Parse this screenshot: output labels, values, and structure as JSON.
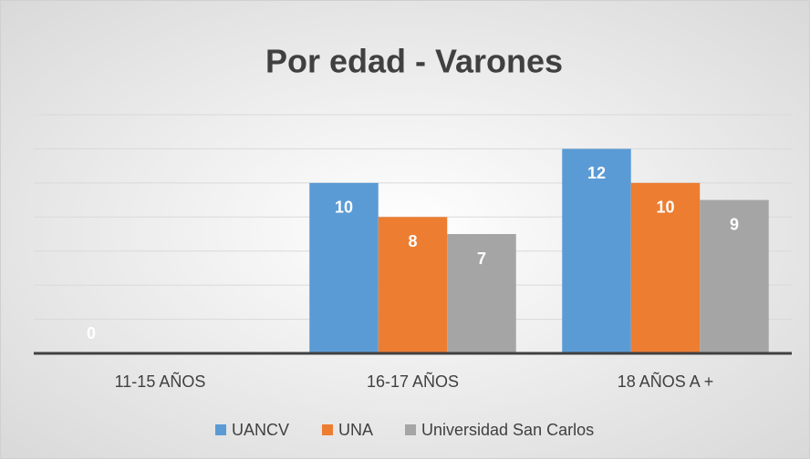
{
  "chart_data": {
    "type": "bar",
    "title": "Por edad - Varones",
    "categories": [
      "11-15 AÑOS",
      "16-17 AÑOS",
      "18 AÑOS A +"
    ],
    "series": [
      {
        "name": "UANCV",
        "color": "#5b9bd5",
        "values": [
          0,
          10,
          12
        ]
      },
      {
        "name": "UNA",
        "color": "#ed7d31",
        "values": [
          null,
          8,
          10
        ]
      },
      {
        "name": "Universidad San Carlos",
        "color": "#a5a5a5",
        "values": [
          null,
          7,
          9
        ]
      }
    ],
    "ylim": [
      0,
      14
    ],
    "yticks": [
      0,
      2,
      4,
      6,
      8,
      10,
      12,
      14
    ],
    "grid": true,
    "legend": "bottom"
  }
}
